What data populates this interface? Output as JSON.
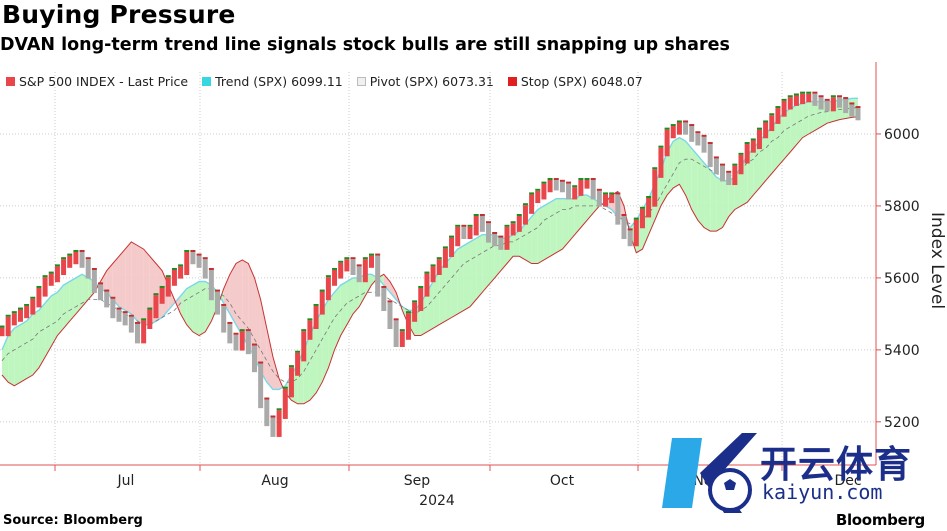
{
  "header": {
    "title": "Buying Pressure",
    "subtitle": "DVAN long-term trend line signals stock bulls are still snapping up shares"
  },
  "legend": [
    {
      "label": "S&P 500 INDEX - Last Price",
      "color": "#e8464a"
    },
    {
      "label": "Trend (SPX) 6099.11",
      "color": "#37d6e0"
    },
    {
      "label": "Pivot (SPX) 6073.31",
      "color": "#aaaaaa"
    },
    {
      "label": "Stop (SPX) 6048.07",
      "color": "#e02020"
    }
  ],
  "footer": {
    "source": "Source: Bloomberg",
    "brand": "Bloomberg"
  },
  "watermark": {
    "text_cn": "开云体育",
    "url": "kaiyun.com"
  },
  "colors": {
    "up_fill": "#b8f5b8",
    "down_fill": "#f3c4c4",
    "bar_red": "#e8464a",
    "bar_grey": "#aaaaaa",
    "trend": "#7ad8e8",
    "stop": "#c83232",
    "grid": "#cccccc",
    "axis": "#e05050"
  },
  "chart_data": {
    "type": "line",
    "title": "Buying Pressure",
    "ylabel": "Index Level",
    "xlabel": "2024",
    "ylim": [
      5080,
      6200
    ],
    "yticks": [
      5200,
      5400,
      5600,
      5800,
      6000
    ],
    "x_month_labels": [
      "Jul",
      "Aug",
      "Sep",
      "Oct",
      "Nov",
      "Dec"
    ],
    "x_year_label": "2024",
    "grid": true,
    "legend_position": "top-left",
    "series": [
      {
        "name": "S&P 500 INDEX - Last Price",
        "values": [
          5450,
          5480,
          5490,
          5500,
          5510,
          5530,
          5560,
          5590,
          5600,
          5620,
          5640,
          5650,
          5660,
          5640,
          5610,
          5570,
          5550,
          5530,
          5500,
          5490,
          5480,
          5460,
          5430,
          5470,
          5500,
          5540,
          5560,
          5590,
          5610,
          5620,
          5660,
          5650,
          5640,
          5610,
          5550,
          5510,
          5460,
          5430,
          5410,
          5440,
          5400,
          5350,
          5250,
          5200,
          5170,
          5220,
          5280,
          5340,
          5380,
          5440,
          5470,
          5510,
          5550,
          5590,
          5610,
          5630,
          5640,
          5620,
          5600,
          5640,
          5650,
          5560,
          5520,
          5470,
          5420,
          5440,
          5490,
          5520,
          5560,
          5600,
          5620,
          5640,
          5670,
          5700,
          5730,
          5720,
          5730,
          5760,
          5740,
          5710,
          5700,
          5690,
          5730,
          5740,
          5760,
          5790,
          5820,
          5830,
          5850,
          5860,
          5855,
          5850,
          5830,
          5840,
          5860,
          5860,
          5830,
          5810,
          5820,
          5820,
          5760,
          5720,
          5700,
          5750,
          5780,
          5810,
          5890,
          5950,
          6000,
          6010,
          6020,
          6010,
          5990,
          5980,
          5960,
          5920,
          5900,
          5880,
          5870,
          5900,
          5930,
          5960,
          5970,
          6000,
          6020,
          6040,
          6060,
          6080,
          6090,
          6095,
          6100,
          6100,
          6090,
          6080,
          6075,
          6090,
          6085,
          6070,
          6060,
          6050
        ]
      },
      {
        "name": "Trend (SPX) 6099.11",
        "values": [
          5400,
          5440,
          5460,
          5470,
          5480,
          5500,
          5510,
          5530,
          5550,
          5560,
          5580,
          5590,
          5600,
          5610,
          5600,
          5590,
          5570,
          5560,
          5540,
          5520,
          5510,
          5500,
          5480,
          5470,
          5470,
          5480,
          5490,
          5510,
          5530,
          5550,
          5570,
          5580,
          5590,
          5590,
          5580,
          5560,
          5530,
          5500,
          5470,
          5440,
          5410,
          5380,
          5340,
          5310,
          5290,
          5290,
          5300,
          5330,
          5360,
          5400,
          5440,
          5480,
          5510,
          5540,
          5560,
          5580,
          5590,
          5600,
          5600,
          5610,
          5610,
          5600,
          5580,
          5560,
          5540,
          5520,
          5510,
          5510,
          5530,
          5560,
          5590,
          5620,
          5640,
          5660,
          5680,
          5690,
          5700,
          5710,
          5720,
          5720,
          5720,
          5710,
          5710,
          5720,
          5730,
          5750,
          5770,
          5790,
          5800,
          5810,
          5820,
          5820,
          5820,
          5820,
          5830,
          5830,
          5820,
          5810,
          5800,
          5790,
          5770,
          5760,
          5740,
          5760,
          5790,
          5820,
          5860,
          5900,
          5950,
          5980,
          5990,
          5980,
          5960,
          5940,
          5920,
          5900,
          5880,
          5870,
          5870,
          5880,
          5910,
          5940,
          5960,
          5980,
          6000,
          6020,
          6040,
          6060,
          6070,
          6080,
          6085,
          6090,
          6090,
          6090,
          6090,
          6090,
          6095,
          6095,
          6099,
          6099
        ]
      },
      {
        "name": "Pivot (SPX) 6073.31",
        "values": [
          5370,
          5390,
          5400,
          5410,
          5420,
          5430,
          5450,
          5460,
          5470,
          5480,
          5500,
          5510,
          5520,
          5530,
          5540,
          5540,
          5540,
          5530,
          5520,
          5510,
          5500,
          5490,
          5480,
          5470,
          5470,
          5480,
          5490,
          5500,
          5510,
          5530,
          5540,
          5550,
          5560,
          5570,
          5570,
          5560,
          5550,
          5530,
          5500,
          5480,
          5460,
          5430,
          5400,
          5370,
          5340,
          5320,
          5310,
          5310,
          5320,
          5340,
          5370,
          5400,
          5430,
          5460,
          5490,
          5510,
          5530,
          5540,
          5550,
          5560,
          5560,
          5560,
          5550,
          5540,
          5530,
          5520,
          5510,
          5500,
          5510,
          5520,
          5540,
          5560,
          5580,
          5600,
          5620,
          5640,
          5650,
          5660,
          5670,
          5680,
          5690,
          5690,
          5700,
          5700,
          5710,
          5720,
          5730,
          5740,
          5760,
          5770,
          5780,
          5790,
          5790,
          5800,
          5800,
          5800,
          5800,
          5800,
          5790,
          5780,
          5770,
          5760,
          5750,
          5750,
          5760,
          5780,
          5800,
          5830,
          5860,
          5890,
          5920,
          5930,
          5930,
          5920,
          5910,
          5900,
          5890,
          5880,
          5880,
          5890,
          5900,
          5920,
          5930,
          5950,
          5960,
          5980,
          5990,
          6010,
          6020,
          6030,
          6040,
          6050,
          6055,
          6060,
          6062,
          6065,
          6068,
          6070,
          6072,
          6073
        ]
      },
      {
        "name": "Stop (SPX) 6048.07",
        "values": [
          5330,
          5310,
          5300,
          5310,
          5320,
          5330,
          5350,
          5380,
          5410,
          5440,
          5460,
          5480,
          5500,
          5520,
          5540,
          5560,
          5590,
          5620,
          5640,
          5660,
          5680,
          5700,
          5690,
          5680,
          5660,
          5640,
          5620,
          5580,
          5540,
          5500,
          5470,
          5450,
          5440,
          5450,
          5480,
          5520,
          5570,
          5610,
          5640,
          5650,
          5640,
          5600,
          5540,
          5460,
          5380,
          5320,
          5280,
          5260,
          5250,
          5250,
          5260,
          5280,
          5310,
          5350,
          5400,
          5440,
          5470,
          5500,
          5520,
          5550,
          5580,
          5600,
          5610,
          5590,
          5560,
          5510,
          5470,
          5440,
          5440,
          5450,
          5460,
          5470,
          5480,
          5490,
          5500,
          5510,
          5520,
          5540,
          5560,
          5580,
          5600,
          5620,
          5640,
          5660,
          5660,
          5650,
          5640,
          5640,
          5650,
          5660,
          5670,
          5680,
          5700,
          5720,
          5740,
          5760,
          5780,
          5800,
          5810,
          5830,
          5840,
          5800,
          5720,
          5670,
          5680,
          5720,
          5760,
          5800,
          5830,
          5850,
          5860,
          5830,
          5790,
          5760,
          5740,
          5730,
          5730,
          5740,
          5770,
          5790,
          5800,
          5810,
          5830,
          5850,
          5870,
          5890,
          5910,
          5930,
          5950,
          5970,
          5990,
          6000,
          6010,
          6020,
          6030,
          6035,
          6040,
          6043,
          6046,
          6048
        ]
      }
    ]
  }
}
